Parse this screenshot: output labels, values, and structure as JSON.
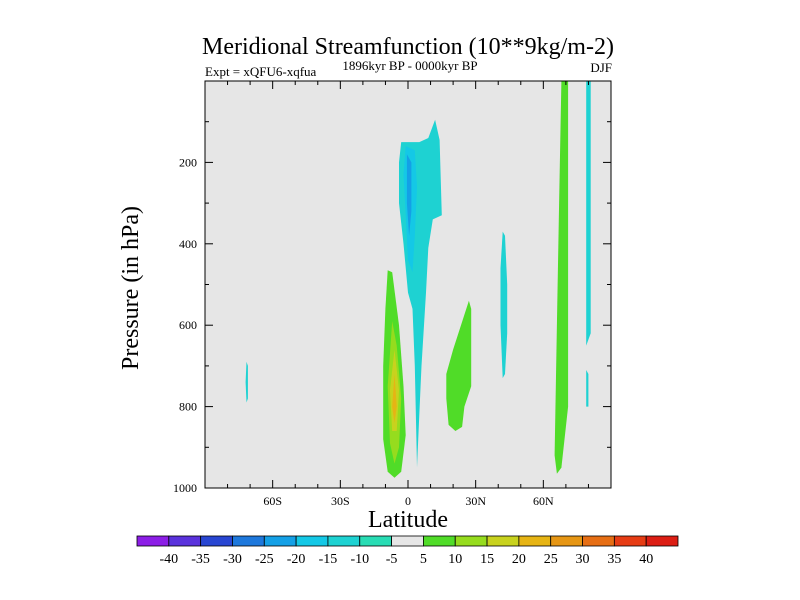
{
  "chart_data": {
    "type": "contour",
    "title": "Meridional Streamfunction (10**9kg/m-2)",
    "subtitle_left": "Expt = xQFU6-xqfua",
    "subtitle_center": "1896kyr BP - 0000kyr BP",
    "subtitle_right": "DJF",
    "xlabel": "Latitude",
    "ylabel": "Pressure (in hPa)",
    "xlim": [
      -90,
      90
    ],
    "ylim": [
      1000,
      0
    ],
    "x_ticks": [
      {
        "value": -60,
        "label": "60S"
      },
      {
        "value": -30,
        "label": "30S"
      },
      {
        "value": 0,
        "label": "0"
      },
      {
        "value": 30,
        "label": "30N"
      },
      {
        "value": 60,
        "label": "60N"
      }
    ],
    "y_ticks": [
      {
        "value": 200,
        "label": "200"
      },
      {
        "value": 400,
        "label": "400"
      },
      {
        "value": 600,
        "label": "600"
      },
      {
        "value": 800,
        "label": "800"
      },
      {
        "value": 1000,
        "label": "1000"
      }
    ],
    "background_color": "#e6e6e6",
    "colorbar": {
      "labels": [
        "-40",
        "-35",
        "-30",
        "-25",
        "-20",
        "-15",
        "-10",
        "-5",
        "5",
        "10",
        "15",
        "20",
        "25",
        "30",
        "35",
        "40"
      ],
      "colors": [
        "#8c1ee6",
        "#5a32dc",
        "#2846d2",
        "#1e78dc",
        "#14a0e6",
        "#14c8e6",
        "#1ed2d2",
        "#28dcb4",
        "#e6e6e6",
        "#50dc28",
        "#96dc1e",
        "#c8d21e",
        "#e6b414",
        "#e69614",
        "#e66e14",
        "#e63c14",
        "#dc1e14"
      ]
    },
    "regions": [
      {
        "value": -10,
        "color": "#1ed2d2",
        "points": [
          [
            -3,
            150
          ],
          [
            5,
            150
          ],
          [
            9,
            140
          ],
          [
            12,
            95
          ],
          [
            14,
            145
          ],
          [
            15,
            330
          ],
          [
            11,
            340
          ],
          [
            9,
            410
          ],
          [
            8,
            520
          ],
          [
            6,
            700
          ],
          [
            5,
            820
          ],
          [
            4,
            950
          ],
          [
            3,
            700
          ],
          [
            2,
            560
          ],
          [
            0,
            520
          ],
          [
            -2,
            400
          ],
          [
            -4,
            300
          ],
          [
            -4,
            200
          ]
        ]
      },
      {
        "value": -15,
        "color": "#14c8e6",
        "points": [
          [
            -1,
            160
          ],
          [
            3,
            170
          ],
          [
            4,
            260
          ],
          [
            3,
            380
          ],
          [
            2,
            470
          ],
          [
            0,
            440
          ],
          [
            -1,
            330
          ],
          [
            -2,
            230
          ]
        ]
      },
      {
        "value": -20,
        "color": "#14a0e6",
        "points": [
          [
            -0.5,
            180
          ],
          [
            1.5,
            200
          ],
          [
            1.5,
            320
          ],
          [
            0.5,
            380
          ],
          [
            -0.5,
            300
          ]
        ]
      },
      {
        "value": 10,
        "color": "#50dc28",
        "points": [
          [
            -9,
            465
          ],
          [
            -7,
            470
          ],
          [
            -4,
            600
          ],
          [
            -2,
            750
          ],
          [
            -1,
            870
          ],
          [
            -3,
            960
          ],
          [
            -6,
            975
          ],
          [
            -9,
            960
          ],
          [
            -11,
            880
          ],
          [
            -11,
            700
          ],
          [
            -10,
            560
          ]
        ]
      },
      {
        "value": 15,
        "color": "#96dc1e",
        "points": [
          [
            -7,
            590
          ],
          [
            -5,
            650
          ],
          [
            -3,
            780
          ],
          [
            -4,
            900
          ],
          [
            -6,
            940
          ],
          [
            -8,
            890
          ],
          [
            -9,
            750
          ]
        ]
      },
      {
        "value": 20,
        "color": "#c8d21e",
        "points": [
          [
            -6,
            660
          ],
          [
            -4,
            760
          ],
          [
            -5,
            860
          ],
          [
            -7,
            860
          ],
          [
            -8,
            760
          ]
        ]
      },
      {
        "value": 25,
        "color": "#e6b414",
        "points": [
          [
            -6,
            720
          ],
          [
            -5,
            800
          ],
          [
            -6,
            840
          ],
          [
            -7,
            800
          ]
        ]
      },
      {
        "value": 10,
        "color": "#50dc28",
        "points": [
          [
            27,
            540
          ],
          [
            28,
            560
          ],
          [
            28,
            750
          ],
          [
            25,
            800
          ],
          [
            24,
            850
          ],
          [
            21,
            860
          ],
          [
            18,
            845
          ],
          [
            17,
            780
          ],
          [
            17,
            720
          ],
          [
            20,
            660
          ]
        ]
      },
      {
        "value": 10,
        "color": "#50dc28",
        "points": [
          [
            68,
            0
          ],
          [
            71,
            0
          ],
          [
            71,
            800
          ],
          [
            68,
            950
          ],
          [
            66,
            965
          ],
          [
            65,
            920
          ],
          [
            66,
            600
          ],
          [
            67,
            300
          ]
        ]
      },
      {
        "value": -10,
        "color": "#1ed2d2",
        "points": [
          [
            79,
            0
          ],
          [
            81,
            0
          ],
          [
            81,
            620
          ],
          [
            79,
            650
          ],
          [
            79,
            300
          ]
        ]
      },
      {
        "value": -10,
        "color": "#1ed2d2",
        "points": [
          [
            42,
            370
          ],
          [
            43,
            380
          ],
          [
            44,
            500
          ],
          [
            44,
            620
          ],
          [
            43,
            720
          ],
          [
            42,
            730
          ],
          [
            41,
            600
          ],
          [
            41,
            460
          ]
        ]
      },
      {
        "value": -10,
        "color": "#1ed2d2",
        "points": [
          [
            -71.6,
            690
          ],
          [
            -71,
            700
          ],
          [
            -71,
            780
          ],
          [
            -71.6,
            790
          ],
          [
            -72,
            740
          ]
        ]
      },
      {
        "value": -10,
        "color": "#1ed2d2",
        "points": [
          [
            79,
            710
          ],
          [
            80,
            720
          ],
          [
            80,
            800
          ],
          [
            79,
            800
          ]
        ]
      }
    ]
  }
}
